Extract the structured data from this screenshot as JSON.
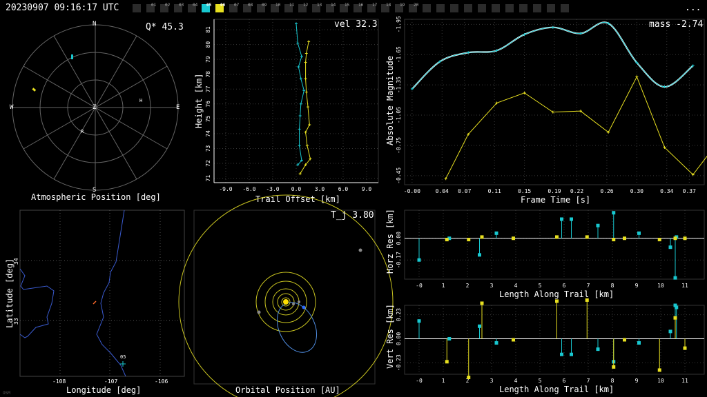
{
  "header": {
    "timestamp": "20230907 09:16:17 UTC",
    "more": "...",
    "cameras": [
      {
        "label": "",
        "state": "off"
      },
      {
        "label": "01",
        "state": "off"
      },
      {
        "label": "02",
        "state": "off"
      },
      {
        "label": "03",
        "state": "off"
      },
      {
        "label": "04",
        "state": "off"
      },
      {
        "label": "05",
        "state": "cyan"
      },
      {
        "label": "06",
        "state": "yellow"
      },
      {
        "label": "07",
        "state": "off"
      },
      {
        "label": "08",
        "state": "off"
      },
      {
        "label": "09",
        "state": "off"
      },
      {
        "label": "10",
        "state": "off"
      },
      {
        "label": "11",
        "state": "off"
      },
      {
        "label": "12",
        "state": "off"
      },
      {
        "label": "13",
        "state": "off"
      },
      {
        "label": "14",
        "state": "off"
      },
      {
        "label": "15",
        "state": "off"
      },
      {
        "label": "16",
        "state": "off"
      },
      {
        "label": "17",
        "state": "off"
      },
      {
        "label": "18",
        "state": "off"
      },
      {
        "label": "19",
        "state": "off"
      },
      {
        "label": "20",
        "state": "off"
      },
      {
        "label": "",
        "state": "off"
      },
      {
        "label": "",
        "state": "off"
      },
      {
        "label": "",
        "state": "off"
      },
      {
        "label": "",
        "state": "off"
      },
      {
        "label": "",
        "state": "off"
      },
      {
        "label": "",
        "state": "off"
      },
      {
        "label": "",
        "state": "off"
      },
      {
        "label": "",
        "state": "off"
      },
      {
        "label": "",
        "state": "off"
      },
      {
        "label": "",
        "state": "off"
      },
      {
        "label": "",
        "state": "off"
      }
    ]
  },
  "colors": {
    "cyan": "#18c8d0",
    "yellow": "#e8e020",
    "white": "#ffffff",
    "grid": "#555555",
    "map": "#3a5bd0"
  },
  "panels": {
    "sky": {
      "value": "Q* 45.3",
      "xlabel": "Atmospheric Position [deg]",
      "compass": {
        "n": "N",
        "s": "S",
        "e": "E",
        "w": "W",
        "z": "Z"
      },
      "stations": [
        "H",
        "R"
      ]
    },
    "height": {
      "value": "vel 32.3",
      "xlabel": "Trail Offset [km]",
      "ylabel": "Height [km]"
    },
    "magnitude": {
      "value": "mass -2.74",
      "xlabel": "Frame Time [s]",
      "ylabel": "Absolute Magnitude"
    },
    "map": {
      "xlabel": "Longitude [deg]",
      "ylabel": "Latitude [deg]",
      "station_label": "05",
      "watermark": "OSM"
    },
    "orbit": {
      "value": "T_j 3.80",
      "xlabel": "Orbital Position [AU]"
    },
    "horz_res": {
      "xlabel": "Length Along Trail [km]",
      "ylabel": "Horz Res [km]"
    },
    "vert_res": {
      "xlabel": "Length Along Trail [km]",
      "ylabel": "Vert Res [km]"
    }
  },
  "chart_data": [
    {
      "name": "height-vs-trail-offset",
      "type": "line",
      "xlabel": "Trail Offset [km]",
      "ylabel": "Height [km]",
      "xlim": [
        -10.5,
        10.5
      ],
      "ylim": [
        70.7,
        81.7
      ],
      "xticks": [
        "-9.0",
        "-6.0",
        "-3.0",
        "0.0",
        "3.0",
        "6.0",
        "9.0"
      ],
      "xtick_values": [
        -9,
        -6,
        -3,
        0,
        3,
        6,
        9
      ],
      "yticks": [
        "71",
        "72",
        "73",
        "74",
        "75",
        "76",
        "77",
        "78",
        "79",
        "80",
        "81"
      ],
      "ytick_values": [
        71,
        72,
        73,
        74,
        75,
        76,
        77,
        78,
        79,
        80,
        81
      ],
      "series": [
        {
          "color": "cyan",
          "points": [
            [
              0.0,
              81.4
            ],
            [
              0.2,
              80.1
            ],
            [
              0.7,
              79.2
            ],
            [
              0.3,
              78.5
            ],
            [
              0.6,
              77.7
            ],
            [
              1.0,
              76.9
            ],
            [
              0.6,
              76.0
            ],
            [
              0.5,
              75.2
            ],
            [
              0.4,
              74.3
            ],
            [
              0.4,
              73.2
            ],
            [
              0.7,
              72.2
            ],
            [
              0.2,
              71.9
            ]
          ]
        },
        {
          "color": "yellow",
          "points": [
            [
              1.6,
              80.2
            ],
            [
              1.3,
              79.4
            ],
            [
              1.2,
              78.8
            ],
            [
              1.2,
              77.7
            ],
            [
              1.3,
              76.8
            ],
            [
              1.5,
              75.8
            ],
            [
              1.7,
              74.6
            ],
            [
              1.2,
              74.1
            ],
            [
              1.4,
              73.2
            ],
            [
              1.8,
              72.3
            ],
            [
              1.2,
              71.9
            ],
            [
              0.5,
              71.3
            ]
          ]
        }
      ]
    },
    {
      "name": "magnitude-vs-time",
      "type": "line",
      "xlabel": "Frame Time [s]",
      "ylabel": "Absolute Magnitude",
      "xlim": [
        -0.01,
        0.39
      ],
      "ylim": [
        -2.0,
        -0.36
      ],
      "xticks": [
        "-0.00",
        "0.04",
        "0.07",
        "0.11",
        "0.15",
        "0.19",
        "0.22",
        "0.26",
        "0.30",
        "0.34",
        "0.37"
      ],
      "xtick_values": [
        0.0,
        0.04,
        0.07,
        0.11,
        0.15,
        0.19,
        0.22,
        0.26,
        0.3,
        0.34,
        0.37
      ],
      "yticks": [
        "-1.95",
        "-1.65",
        "-1.35",
        "-1.05",
        "-0.75",
        "-0.45"
      ],
      "ytick_values": [
        -1.95,
        -1.65,
        -1.35,
        -1.05,
        -0.75,
        -0.45
      ],
      "series": [
        {
          "color": "cyan",
          "smooth": true,
          "points": [
            [
              0.0,
              -1.31
            ],
            [
              0.037,
              -1.58
            ],
            [
              0.075,
              -1.67
            ],
            [
              0.113,
              -1.69
            ],
            [
              0.15,
              -1.85
            ],
            [
              0.188,
              -1.92
            ],
            [
              0.225,
              -1.86
            ],
            [
              0.262,
              -1.96
            ],
            [
              0.3,
              -1.57
            ],
            [
              0.337,
              -1.33
            ],
            [
              0.375,
              -1.54
            ]
          ]
        },
        {
          "color": "yellow",
          "points": [
            [
              0.045,
              -0.42
            ],
            [
              0.075,
              -0.86
            ],
            [
              0.113,
              -1.17
            ],
            [
              0.15,
              -1.27
            ],
            [
              0.188,
              -1.08
            ],
            [
              0.225,
              -1.09
            ],
            [
              0.262,
              -0.88
            ],
            [
              0.3,
              -1.43
            ],
            [
              0.337,
              -0.73
            ],
            [
              0.375,
              -0.46
            ],
            [
              0.412,
              -0.82
            ]
          ]
        }
      ]
    },
    {
      "name": "horz-residuals",
      "type": "scatter",
      "xlabel": "Length Along Trail [km]",
      "ylabel": "Horz Res [km]",
      "xlim": [
        -0.6,
        11.8
      ],
      "ylim": [
        -0.32,
        0.22
      ],
      "xticks": [
        "-0",
        "1",
        "2",
        "3",
        "4",
        "5",
        "6",
        "7",
        "8",
        "9",
        "10",
        "11"
      ],
      "xtick_values": [
        0,
        1,
        2,
        3,
        4,
        5,
        6,
        7,
        8,
        9,
        10,
        11
      ],
      "yticks": [
        "0.00",
        "-0.17"
      ],
      "ytick_values": [
        0.0,
        -0.17
      ],
      "series": [
        {
          "color": "cyan",
          "points": [
            [
              0.0,
              -0.17
            ],
            [
              1.25,
              0.0
            ],
            [
              2.5,
              -0.13
            ],
            [
              3.2,
              0.04
            ],
            [
              5.9,
              0.15
            ],
            [
              6.3,
              0.15
            ],
            [
              7.4,
              0.1
            ],
            [
              8.05,
              0.2
            ],
            [
              9.1,
              0.04
            ],
            [
              10.4,
              -0.07
            ],
            [
              10.6,
              -0.31
            ],
            [
              10.65,
              0.01
            ]
          ]
        },
        {
          "color": "yellow",
          "points": [
            [
              1.15,
              -0.01
            ],
            [
              2.05,
              -0.01
            ],
            [
              2.6,
              0.01
            ],
            [
              3.9,
              0.0
            ],
            [
              5.7,
              0.01
            ],
            [
              6.95,
              0.01
            ],
            [
              8.05,
              -0.01
            ],
            [
              8.5,
              0.0
            ],
            [
              9.95,
              -0.01
            ],
            [
              10.6,
              0.0
            ],
            [
              11.0,
              0.0
            ]
          ]
        }
      ]
    },
    {
      "name": "vert-residuals",
      "type": "scatter",
      "xlabel": "Length Along Trail [km]",
      "ylabel": "Vert Res [km]",
      "xlim": [
        -0.6,
        11.8
      ],
      "ylim": [
        -0.34,
        0.32
      ],
      "xticks": [
        "-0",
        "1",
        "2",
        "3",
        "4",
        "5",
        "6",
        "7",
        "8",
        "9",
        "10",
        "11"
      ],
      "xtick_values": [
        0,
        1,
        2,
        3,
        4,
        5,
        6,
        7,
        8,
        9,
        10,
        11
      ],
      "yticks": [
        "0.23",
        "0.00",
        "-0.23"
      ],
      "ytick_values": [
        0.23,
        0.0,
        -0.23
      ],
      "series": [
        {
          "color": "cyan",
          "points": [
            [
              0.0,
              0.17
            ],
            [
              1.25,
              0.0
            ],
            [
              2.5,
              0.12
            ],
            [
              3.2,
              -0.04
            ],
            [
              5.9,
              -0.15
            ],
            [
              6.3,
              -0.15
            ],
            [
              7.4,
              -0.1
            ],
            [
              8.05,
              -0.22
            ],
            [
              9.1,
              -0.04
            ],
            [
              10.4,
              0.07
            ],
            [
              10.6,
              0.32
            ],
            [
              10.65,
              0.3
            ]
          ]
        },
        {
          "color": "yellow",
          "points": [
            [
              1.15,
              -0.22
            ],
            [
              2.05,
              -0.37
            ],
            [
              2.6,
              0.34
            ],
            [
              3.9,
              -0.01
            ],
            [
              5.7,
              0.36
            ],
            [
              6.95,
              0.37
            ],
            [
              8.05,
              -0.27
            ],
            [
              8.5,
              -0.01
            ],
            [
              9.95,
              -0.3
            ],
            [
              10.6,
              0.2
            ],
            [
              11.0,
              -0.09
            ]
          ]
        }
      ]
    }
  ]
}
